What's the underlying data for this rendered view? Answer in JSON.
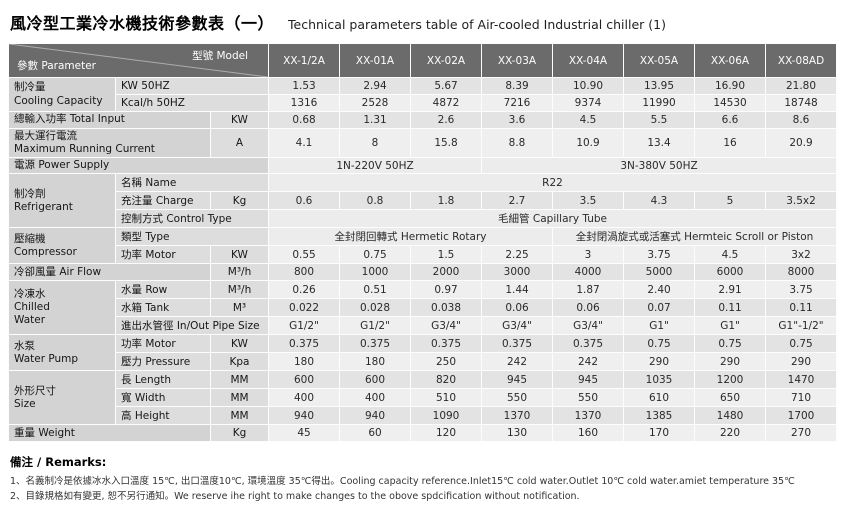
{
  "page": {
    "title_zh": "風冷型工業冷水機技術參數表（一）",
    "title_en": "Technical parameters table of Air-cooled Industrial chiller (1)"
  },
  "colors": {
    "header_bg": "#6b6b6b",
    "header_text": "#ffffff",
    "group_cell_bg": "#d3d3d3",
    "label_cell_bg": "#dddddd",
    "row_odd_bg": "#e3e3e3",
    "row_even_bg": "#efefef"
  },
  "table": {
    "header": {
      "param_label": "參數 Parameter",
      "model_label": "型號 Model",
      "models": [
        "XX-1/2A",
        "XX-01A",
        "XX-02A",
        "XX-03A",
        "XX-04A",
        "XX-05A",
        "XX-06A",
        "XX-08AD"
      ]
    },
    "grid": [
      [
        {
          "t": "制冷量\nCooling Capacity",
          "k": "g",
          "rs": 2
        },
        {
          "t": "KW 50HZ",
          "k": "s",
          "cs": 2
        },
        {
          "t": "1.53",
          "k": "v"
        },
        {
          "t": "2.94",
          "k": "v"
        },
        {
          "t": "5.67",
          "k": "v"
        },
        {
          "t": "8.39",
          "k": "v"
        },
        {
          "t": "10.90",
          "k": "v"
        },
        {
          "t": "13.95",
          "k": "v"
        },
        {
          "t": "16.90",
          "k": "v"
        },
        {
          "t": "21.80",
          "k": "v"
        }
      ],
      [
        {
          "t": "Kcal/h 50HZ",
          "k": "s",
          "cs": 2
        },
        {
          "t": "1316",
          "k": "v"
        },
        {
          "t": "2528",
          "k": "v"
        },
        {
          "t": "4872",
          "k": "v"
        },
        {
          "t": "7216",
          "k": "v"
        },
        {
          "t": "9374",
          "k": "v"
        },
        {
          "t": "11990",
          "k": "v"
        },
        {
          "t": "14530",
          "k": "v"
        },
        {
          "t": "18748",
          "k": "v"
        }
      ],
      [
        {
          "t": "總輸入功率 Total Input",
          "k": "g2",
          "cs": 2
        },
        {
          "t": "KW",
          "k": "u"
        },
        {
          "t": "0.68",
          "k": "v"
        },
        {
          "t": "1.31",
          "k": "v"
        },
        {
          "t": "2.6",
          "k": "v"
        },
        {
          "t": "3.6",
          "k": "v"
        },
        {
          "t": "4.5",
          "k": "v"
        },
        {
          "t": "5.5",
          "k": "v"
        },
        {
          "t": "6.6",
          "k": "v"
        },
        {
          "t": "8.6",
          "k": "v"
        }
      ],
      [
        {
          "t": "最大運行電流\nMaximum Running Current",
          "k": "g2",
          "cs": 2
        },
        {
          "t": "A",
          "k": "u"
        },
        {
          "t": "4.1",
          "k": "v"
        },
        {
          "t": "8",
          "k": "v"
        },
        {
          "t": "15.8",
          "k": "v"
        },
        {
          "t": "8.8",
          "k": "v"
        },
        {
          "t": "10.9",
          "k": "v"
        },
        {
          "t": "13.4",
          "k": "v"
        },
        {
          "t": "16",
          "k": "v"
        },
        {
          "t": "20.9",
          "k": "v"
        }
      ],
      [
        {
          "t": "電源 Power Supply",
          "k": "g2",
          "cs": 3
        },
        {
          "t": "1N-220V 50HZ",
          "k": "m",
          "cs": 3
        },
        {
          "t": "3N-380V 50HZ",
          "k": "m",
          "cs": 5
        }
      ],
      [
        {
          "t": "制冷劑\nRefrigerant",
          "k": "g",
          "rs": 3
        },
        {
          "t": "名稱 Name",
          "k": "s",
          "cs": 2
        },
        {
          "t": "R22",
          "k": "m",
          "cs": 8
        }
      ],
      [
        {
          "t": "充注量 Charge",
          "k": "s"
        },
        {
          "t": "Kg",
          "k": "u"
        },
        {
          "t": "0.6",
          "k": "v"
        },
        {
          "t": "0.8",
          "k": "v"
        },
        {
          "t": "1.8",
          "k": "v"
        },
        {
          "t": "2.7",
          "k": "v"
        },
        {
          "t": "3.5",
          "k": "v"
        },
        {
          "t": "4.3",
          "k": "v"
        },
        {
          "t": "5",
          "k": "v"
        },
        {
          "t": "3.5x2",
          "k": "v"
        }
      ],
      [
        {
          "t": "控制方式 Control Type",
          "k": "s",
          "cs": 2
        },
        {
          "t": "毛細管 Capillary Tube",
          "k": "m",
          "cs": 8
        }
      ],
      [
        {
          "t": "壓縮機\nCompressor",
          "k": "g",
          "rs": 2
        },
        {
          "t": "類型 Type",
          "k": "s",
          "cs": 2
        },
        {
          "t": "全封閉回轉式 Hermetic Rotary",
          "k": "m",
          "cs": 4
        },
        {
          "t": "全封閉渦旋式或活塞式 Hermteic Scroll or Piston",
          "k": "m",
          "cs": 4
        }
      ],
      [
        {
          "t": "功率 Motor",
          "k": "s"
        },
        {
          "t": "KW",
          "k": "u"
        },
        {
          "t": "0.55",
          "k": "v"
        },
        {
          "t": "0.75",
          "k": "v"
        },
        {
          "t": "1.5",
          "k": "v"
        },
        {
          "t": "2.25",
          "k": "v"
        },
        {
          "t": "3",
          "k": "v"
        },
        {
          "t": "3.75",
          "k": "v"
        },
        {
          "t": "4.5",
          "k": "v"
        },
        {
          "t": "3x2",
          "k": "v"
        }
      ],
      [
        {
          "t": "冷卻風量 Air Flow",
          "k": "g2",
          "cs": 2
        },
        {
          "t": "M³/h",
          "k": "u"
        },
        {
          "t": "800",
          "k": "v"
        },
        {
          "t": "1000",
          "k": "v"
        },
        {
          "t": "2000",
          "k": "v"
        },
        {
          "t": "3000",
          "k": "v"
        },
        {
          "t": "4000",
          "k": "v"
        },
        {
          "t": "5000",
          "k": "v"
        },
        {
          "t": "6000",
          "k": "v"
        },
        {
          "t": "8000",
          "k": "v"
        }
      ],
      [
        {
          "t": "冷凍水\nChilled\nWater",
          "k": "g",
          "rs": 3
        },
        {
          "t": "水量 Row",
          "k": "s"
        },
        {
          "t": "M³/h",
          "k": "u"
        },
        {
          "t": "0.26",
          "k": "v"
        },
        {
          "t": "0.51",
          "k": "v"
        },
        {
          "t": "0.97",
          "k": "v"
        },
        {
          "t": "1.44",
          "k": "v"
        },
        {
          "t": "1.87",
          "k": "v"
        },
        {
          "t": "2.40",
          "k": "v"
        },
        {
          "t": "2.91",
          "k": "v"
        },
        {
          "t": "3.75",
          "k": "v"
        }
      ],
      [
        {
          "t": "水箱 Tank",
          "k": "s"
        },
        {
          "t": "M³",
          "k": "u"
        },
        {
          "t": "0.022",
          "k": "v"
        },
        {
          "t": "0.028",
          "k": "v"
        },
        {
          "t": "0.038",
          "k": "v"
        },
        {
          "t": "0.06",
          "k": "v"
        },
        {
          "t": "0.06",
          "k": "v"
        },
        {
          "t": "0.07",
          "k": "v"
        },
        {
          "t": "0.11",
          "k": "v"
        },
        {
          "t": "0.11",
          "k": "v"
        }
      ],
      [
        {
          "t": "進出水管徑 In/Out Pipe Size",
          "k": "s",
          "cs": 2
        },
        {
          "t": "G1/2\"",
          "k": "v"
        },
        {
          "t": "G1/2\"",
          "k": "v"
        },
        {
          "t": "G3/4\"",
          "k": "v"
        },
        {
          "t": "G3/4\"",
          "k": "v"
        },
        {
          "t": "G3/4\"",
          "k": "v"
        },
        {
          "t": "G1\"",
          "k": "v"
        },
        {
          "t": "G1\"",
          "k": "v"
        },
        {
          "t": "G1\"-1/2\"",
          "k": "v"
        }
      ],
      [
        {
          "t": "水泵\nWater Pump",
          "k": "g",
          "rs": 2
        },
        {
          "t": "功率 Motor",
          "k": "s"
        },
        {
          "t": "KW",
          "k": "u"
        },
        {
          "t": "0.375",
          "k": "v"
        },
        {
          "t": "0.375",
          "k": "v"
        },
        {
          "t": "0.375",
          "k": "v"
        },
        {
          "t": "0.375",
          "k": "v"
        },
        {
          "t": "0.375",
          "k": "v"
        },
        {
          "t": "0.75",
          "k": "v"
        },
        {
          "t": "0.75",
          "k": "v"
        },
        {
          "t": "0.75",
          "k": "v"
        }
      ],
      [
        {
          "t": "壓力 Pressure",
          "k": "s"
        },
        {
          "t": "Kpa",
          "k": "u"
        },
        {
          "t": "180",
          "k": "v"
        },
        {
          "t": "180",
          "k": "v"
        },
        {
          "t": "250",
          "k": "v"
        },
        {
          "t": "242",
          "k": "v"
        },
        {
          "t": "242",
          "k": "v"
        },
        {
          "t": "290",
          "k": "v"
        },
        {
          "t": "290",
          "k": "v"
        },
        {
          "t": "290",
          "k": "v"
        }
      ],
      [
        {
          "t": "外形尺寸\nSize",
          "k": "g",
          "rs": 3
        },
        {
          "t": "長 Length",
          "k": "s"
        },
        {
          "t": "MM",
          "k": "u"
        },
        {
          "t": "600",
          "k": "v"
        },
        {
          "t": "600",
          "k": "v"
        },
        {
          "t": "820",
          "k": "v"
        },
        {
          "t": "945",
          "k": "v"
        },
        {
          "t": "945",
          "k": "v"
        },
        {
          "t": "1035",
          "k": "v"
        },
        {
          "t": "1200",
          "k": "v"
        },
        {
          "t": "1470",
          "k": "v"
        }
      ],
      [
        {
          "t": "寬 Width",
          "k": "s"
        },
        {
          "t": "MM",
          "k": "u"
        },
        {
          "t": "400",
          "k": "v"
        },
        {
          "t": "400",
          "k": "v"
        },
        {
          "t": "510",
          "k": "v"
        },
        {
          "t": "550",
          "k": "v"
        },
        {
          "t": "550",
          "k": "v"
        },
        {
          "t": "610",
          "k": "v"
        },
        {
          "t": "650",
          "k": "v"
        },
        {
          "t": "710",
          "k": "v"
        }
      ],
      [
        {
          "t": "高 Height",
          "k": "s"
        },
        {
          "t": "MM",
          "k": "u"
        },
        {
          "t": "940",
          "k": "v"
        },
        {
          "t": "940",
          "k": "v"
        },
        {
          "t": "1090",
          "k": "v"
        },
        {
          "t": "1370",
          "k": "v"
        },
        {
          "t": "1370",
          "k": "v"
        },
        {
          "t": "1385",
          "k": "v"
        },
        {
          "t": "1480",
          "k": "v"
        },
        {
          "t": "1700",
          "k": "v"
        }
      ],
      [
        {
          "t": "重量 Weight",
          "k": "g2",
          "cs": 2
        },
        {
          "t": "Kg",
          "k": "u"
        },
        {
          "t": "45",
          "k": "v"
        },
        {
          "t": "60",
          "k": "v"
        },
        {
          "t": "120",
          "k": "v"
        },
        {
          "t": "130",
          "k": "v"
        },
        {
          "t": "160",
          "k": "v"
        },
        {
          "t": "170",
          "k": "v"
        },
        {
          "t": "220",
          "k": "v"
        },
        {
          "t": "270",
          "k": "v"
        }
      ]
    ]
  },
  "remarks": {
    "title": "備注 / Remarks:",
    "lines": [
      "1、名義制冷是依據冰水入口溫度 15℃, 出口溫度10℃, 環境溫度 35℃得出。Cooling capacity reference.Inlet15℃ cold water.Outlet 10℃ cold water.amiet temperature 35℃",
      "2、目錄規格如有變更, 恕不另行通知。We reserve ihe right to make changes to the obove spdcification without notification."
    ]
  }
}
